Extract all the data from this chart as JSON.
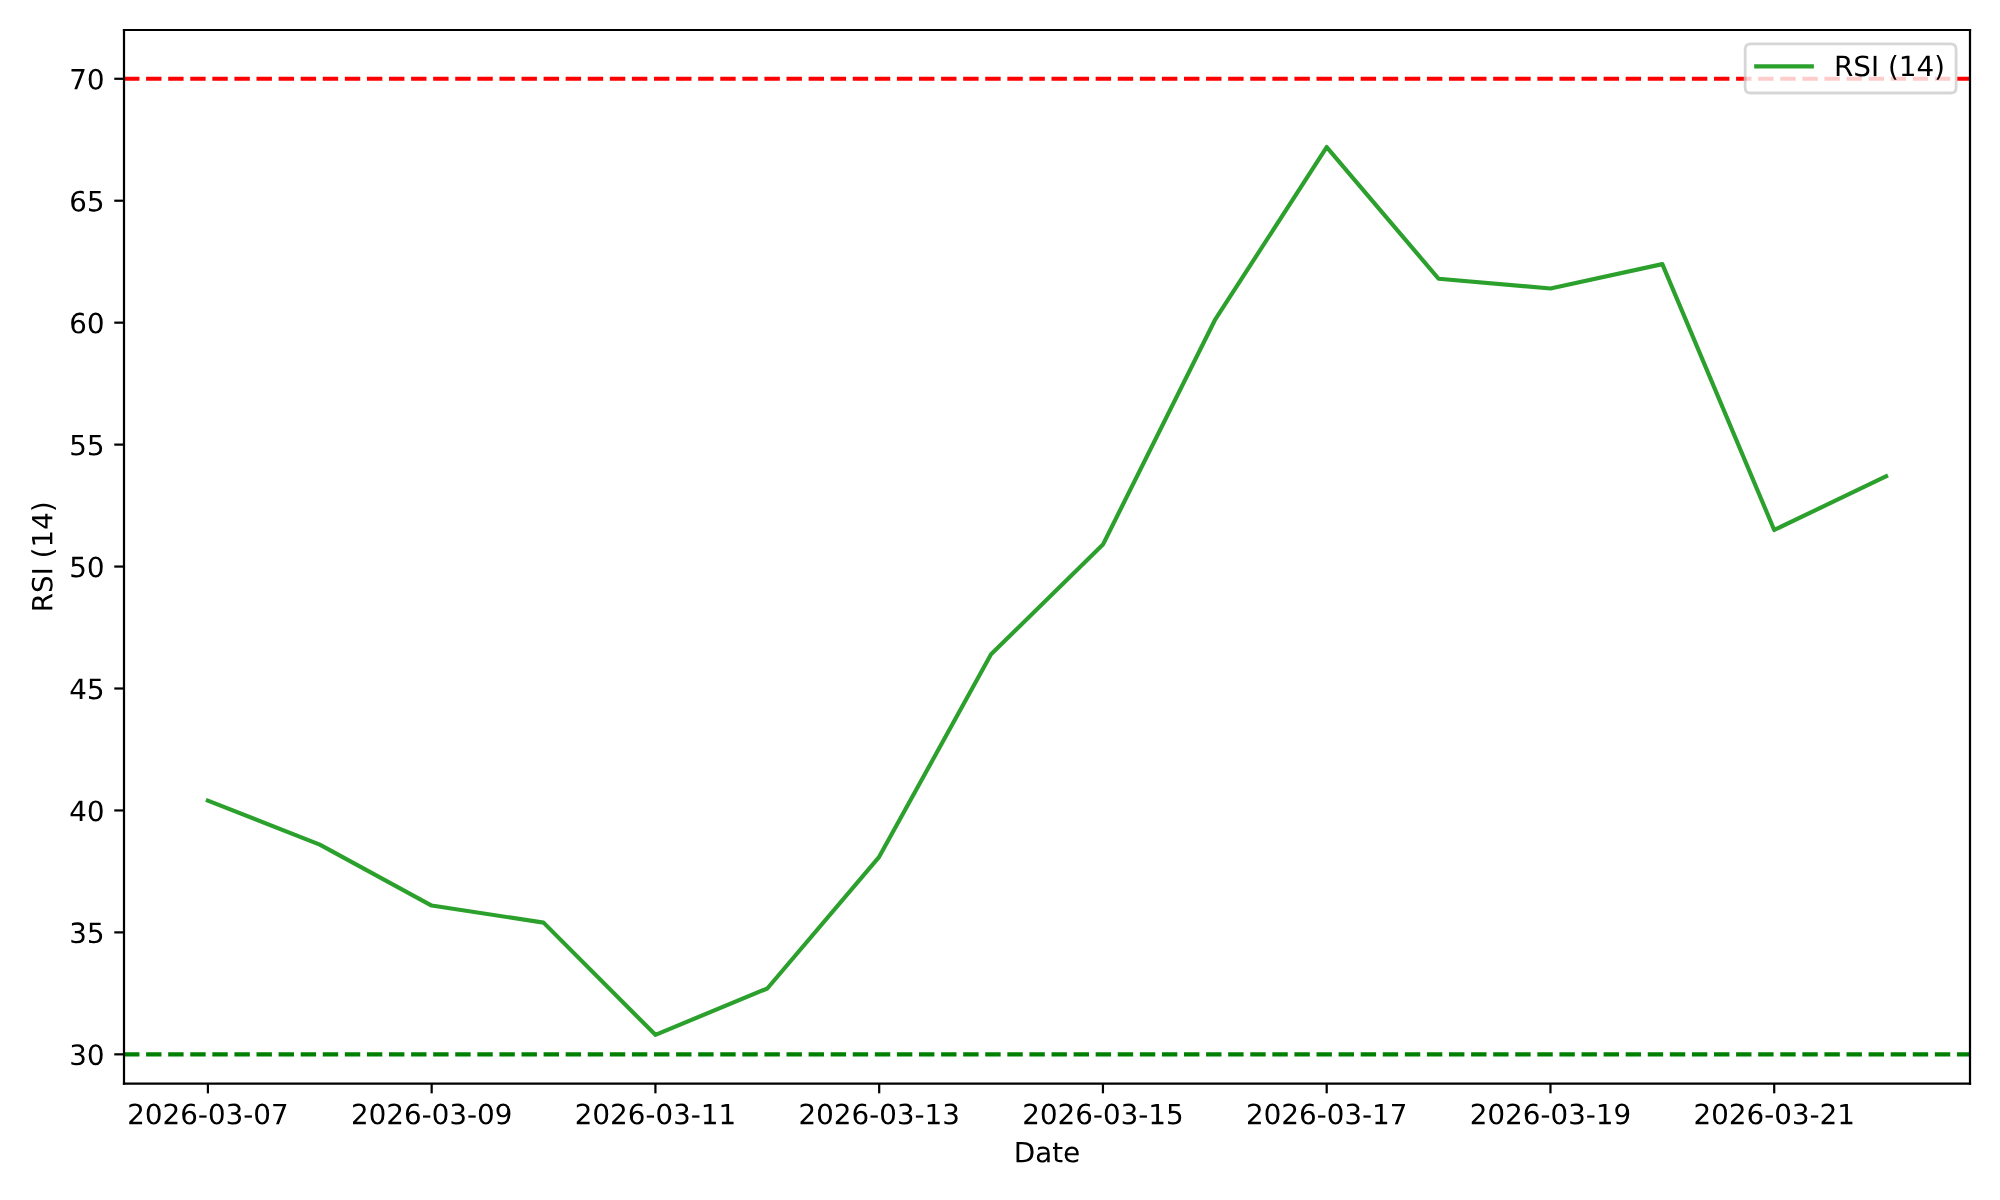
{
  "chart_data": {
    "type": "line",
    "xlabel": "Date",
    "ylabel": "RSI (14)",
    "x": [
      "2026-03-07",
      "2026-03-08",
      "2026-03-09",
      "2026-03-10",
      "2026-03-11",
      "2026-03-12",
      "2026-03-13",
      "2026-03-14",
      "2026-03-15",
      "2026-03-16",
      "2026-03-17",
      "2026-03-18",
      "2026-03-19",
      "2026-03-20",
      "2026-03-21",
      "2026-03-22"
    ],
    "series": [
      {
        "name": "RSI (14)",
        "color": "#2ca02c",
        "values": [
          40.4,
          38.6,
          36.1,
          35.4,
          30.8,
          32.7,
          38.1,
          46.4,
          50.9,
          60.1,
          67.2,
          61.8,
          61.4,
          62.4,
          51.5,
          53.7
        ]
      }
    ],
    "xlim": [
      "2026-03-06T06:00",
      "2026-03-22T18:00"
    ],
    "xticks": [
      "2026-03-07",
      "2026-03-09",
      "2026-03-11",
      "2026-03-13",
      "2026-03-15",
      "2026-03-17",
      "2026-03-19",
      "2026-03-21"
    ],
    "ylim": [
      28.8,
      72
    ],
    "yticks": [
      30,
      35,
      40,
      45,
      50,
      55,
      60,
      65,
      70
    ],
    "ref_lines": [
      {
        "axis": "y",
        "value": 70,
        "color": "#ff0000",
        "line_style": "dashed"
      },
      {
        "axis": "y",
        "value": 30,
        "color": "#008000",
        "line_style": "dashed"
      }
    ],
    "grid": false,
    "legend": "top right",
    "marker": "none",
    "line_style": "solid"
  }
}
